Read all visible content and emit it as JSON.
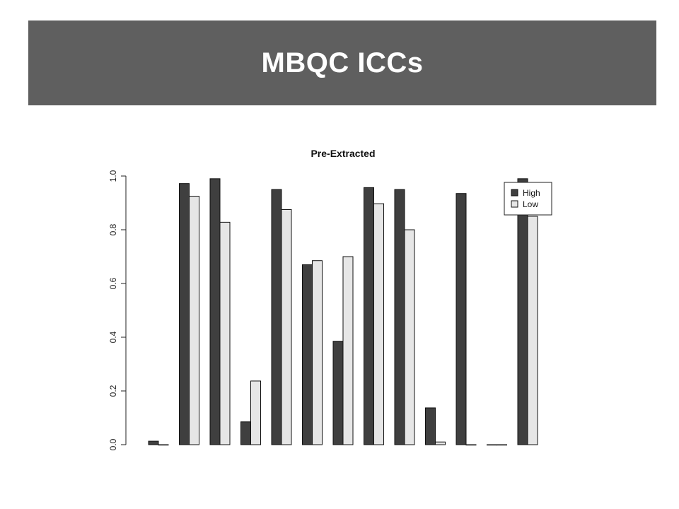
{
  "slide": {
    "title": "MBQC ICCs"
  },
  "colors": {
    "banner": "#5f5f5f",
    "high": "#3f3f3f",
    "low": "#e6e6e6"
  },
  "chart_data": {
    "type": "bar",
    "title": "Pre-Extracted",
    "xlabel": "",
    "ylabel": "",
    "ylim": [
      0,
      1
    ],
    "yticks": [
      "0.0",
      "0.2",
      "0.4",
      "0.6",
      "0.8",
      "1.0"
    ],
    "grid": false,
    "legend_position": "top-right",
    "categories": [
      "",
      "",
      "",
      "",
      "",
      "",
      "",
      "",
      "",
      "",
      "",
      "",
      ""
    ],
    "series": [
      {
        "name": "High",
        "color": "#3f3f3f",
        "values": [
          0.013,
          0.972,
          0.99,
          0.085,
          0.95,
          0.67,
          0.385,
          0.957,
          0.95,
          0.137,
          0.935,
          0.0,
          0.99
        ]
      },
      {
        "name": "Low",
        "color": "#e6e6e6",
        "values": [
          0.0,
          0.925,
          0.828,
          0.237,
          0.875,
          0.685,
          0.7,
          0.897,
          0.8,
          0.01,
          0.0,
          0.0,
          0.85
        ]
      }
    ]
  }
}
